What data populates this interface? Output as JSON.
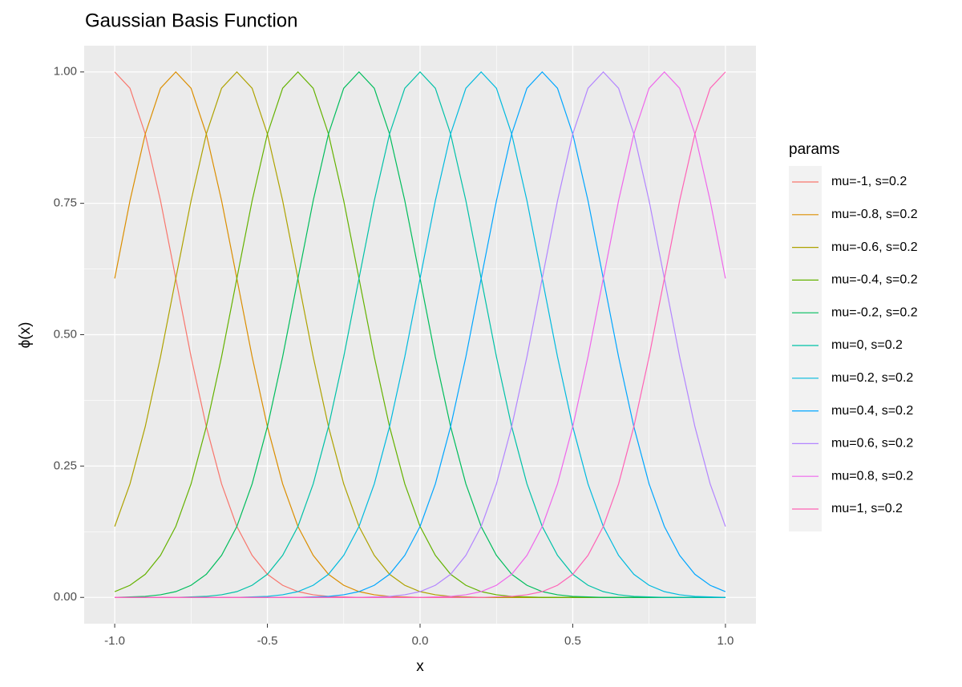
{
  "chart_data": {
    "type": "line",
    "title": "Gaussian Basis Function",
    "x_label": "x",
    "y_label": "ϕ(x)",
    "legend_title": "params",
    "legend_position": "right",
    "grid": true,
    "xlim": [
      -1.1,
      1.1
    ],
    "ylim": [
      -0.05,
      1.05
    ],
    "xticks": [
      {
        "value": -1,
        "label": "-1.0"
      },
      {
        "value": -0.5,
        "label": "-0.5"
      },
      {
        "value": 0,
        "label": "0.0"
      },
      {
        "value": 0.5,
        "label": "0.5"
      },
      {
        "value": 1,
        "label": "1.0"
      }
    ],
    "yticks": [
      {
        "value": 0,
        "label": "0.00"
      },
      {
        "value": 0.25,
        "label": "0.25"
      },
      {
        "value": 0.5,
        "label": "0.50"
      },
      {
        "value": 0.75,
        "label": "0.75"
      },
      {
        "value": 1,
        "label": "1.00"
      }
    ],
    "x": [
      -1,
      -0.95,
      -0.9,
      -0.85,
      -0.8,
      -0.75,
      -0.7,
      -0.65,
      -0.6,
      -0.55,
      -0.5,
      -0.45,
      -0.4,
      -0.35,
      -0.3,
      -0.25,
      -0.2,
      -0.15,
      -0.1,
      -0.05,
      0,
      0.05,
      0.1,
      0.15,
      0.2,
      0.25,
      0.3,
      0.35,
      0.4,
      0.45,
      0.5,
      0.55,
      0.6,
      0.65,
      0.7,
      0.75,
      0.8,
      0.85,
      0.9,
      0.95,
      1
    ],
    "series": [
      {
        "name": "mu=-1, s=0.2",
        "color": "#F8766D",
        "values": [
          1,
          0.969,
          0.882,
          0.755,
          0.607,
          0.458,
          0.325,
          0.216,
          0.135,
          0.08,
          0.044,
          0.023,
          0.011,
          0.005,
          0.002,
          0.001,
          0,
          0,
          0,
          0,
          0,
          0,
          0,
          0,
          0,
          0,
          0,
          0,
          0,
          0,
          0,
          0,
          0,
          0,
          0,
          0,
          0,
          0,
          0,
          0,
          0
        ]
      },
      {
        "name": "mu=-0.8, s=0.2",
        "color": "#DB8E00",
        "values": [
          0.607,
          0.755,
          0.882,
          0.969,
          1,
          0.969,
          0.882,
          0.755,
          0.607,
          0.458,
          0.325,
          0.216,
          0.135,
          0.08,
          0.044,
          0.023,
          0.011,
          0.005,
          0.002,
          0.001,
          0,
          0,
          0,
          0,
          0,
          0,
          0,
          0,
          0,
          0,
          0,
          0,
          0,
          0,
          0,
          0,
          0,
          0,
          0,
          0,
          0
        ]
      },
      {
        "name": "mu=-0.6, s=0.2",
        "color": "#AEA200",
        "values": [
          0.135,
          0.216,
          0.325,
          0.458,
          0.607,
          0.755,
          0.882,
          0.969,
          1,
          0.969,
          0.882,
          0.755,
          0.607,
          0.458,
          0.325,
          0.216,
          0.135,
          0.08,
          0.044,
          0.023,
          0.011,
          0.005,
          0.002,
          0.001,
          0,
          0,
          0,
          0,
          0,
          0,
          0,
          0,
          0,
          0,
          0,
          0,
          0,
          0,
          0,
          0,
          0
        ]
      },
      {
        "name": "mu=-0.4, s=0.2",
        "color": "#64B200",
        "values": [
          0.011,
          0.023,
          0.044,
          0.08,
          0.135,
          0.216,
          0.325,
          0.458,
          0.607,
          0.755,
          0.882,
          0.969,
          1,
          0.969,
          0.882,
          0.755,
          0.607,
          0.458,
          0.325,
          0.216,
          0.135,
          0.08,
          0.044,
          0.023,
          0.011,
          0.005,
          0.002,
          0.001,
          0,
          0,
          0,
          0,
          0,
          0,
          0,
          0,
          0,
          0,
          0,
          0,
          0
        ]
      },
      {
        "name": "mu=-0.2, s=0.2",
        "color": "#00BD5C",
        "values": [
          0,
          0.001,
          0.002,
          0.005,
          0.011,
          0.023,
          0.044,
          0.08,
          0.135,
          0.216,
          0.325,
          0.458,
          0.607,
          0.755,
          0.882,
          0.969,
          1,
          0.969,
          0.882,
          0.755,
          0.607,
          0.458,
          0.325,
          0.216,
          0.135,
          0.08,
          0.044,
          0.023,
          0.011,
          0.005,
          0.002,
          0.001,
          0,
          0,
          0,
          0,
          0,
          0,
          0,
          0,
          0
        ]
      },
      {
        "name": "mu=0, s=0.2",
        "color": "#00C1A7",
        "values": [
          0,
          0,
          0,
          0,
          0,
          0.001,
          0.002,
          0.005,
          0.011,
          0.023,
          0.044,
          0.08,
          0.135,
          0.216,
          0.325,
          0.458,
          0.607,
          0.755,
          0.882,
          0.969,
          1,
          0.969,
          0.882,
          0.755,
          0.607,
          0.458,
          0.325,
          0.216,
          0.135,
          0.08,
          0.044,
          0.023,
          0.011,
          0.005,
          0.002,
          0.001,
          0,
          0,
          0,
          0,
          0
        ]
      },
      {
        "name": "mu=0.2, s=0.2",
        "color": "#00BADE",
        "values": [
          0,
          0,
          0,
          0,
          0,
          0,
          0,
          0,
          0,
          0.001,
          0.002,
          0.005,
          0.011,
          0.023,
          0.044,
          0.08,
          0.135,
          0.216,
          0.325,
          0.458,
          0.607,
          0.755,
          0.882,
          0.969,
          1,
          0.969,
          0.882,
          0.755,
          0.607,
          0.458,
          0.325,
          0.216,
          0.135,
          0.08,
          0.044,
          0.023,
          0.011,
          0.005,
          0.002,
          0.001,
          0
        ]
      },
      {
        "name": "mu=0.4, s=0.2",
        "color": "#00A6FF",
        "values": [
          0,
          0,
          0,
          0,
          0,
          0,
          0,
          0,
          0,
          0,
          0,
          0,
          0,
          0.001,
          0.002,
          0.005,
          0.011,
          0.023,
          0.044,
          0.08,
          0.135,
          0.216,
          0.325,
          0.458,
          0.607,
          0.755,
          0.882,
          0.969,
          1,
          0.969,
          0.882,
          0.755,
          0.607,
          0.458,
          0.325,
          0.216,
          0.135,
          0.08,
          0.044,
          0.023,
          0.011
        ]
      },
      {
        "name": "mu=0.6, s=0.2",
        "color": "#B385FF",
        "values": [
          0,
          0,
          0,
          0,
          0,
          0,
          0,
          0,
          0,
          0,
          0,
          0,
          0,
          0,
          0,
          0,
          0,
          0.001,
          0.002,
          0.005,
          0.011,
          0.023,
          0.044,
          0.08,
          0.135,
          0.216,
          0.325,
          0.458,
          0.607,
          0.755,
          0.882,
          0.969,
          1,
          0.969,
          0.882,
          0.755,
          0.607,
          0.458,
          0.325,
          0.216,
          0.135
        ]
      },
      {
        "name": "mu=0.8, s=0.2",
        "color": "#EF67EB",
        "values": [
          0,
          0,
          0,
          0,
          0,
          0,
          0,
          0,
          0,
          0,
          0,
          0,
          0,
          0,
          0,
          0,
          0,
          0,
          0,
          0,
          0,
          0.001,
          0.002,
          0.005,
          0.011,
          0.023,
          0.044,
          0.08,
          0.135,
          0.216,
          0.325,
          0.458,
          0.607,
          0.755,
          0.882,
          0.969,
          1,
          0.969,
          0.882,
          0.755,
          0.607
        ]
      },
      {
        "name": "mu=1, s=0.2",
        "color": "#FF63B6",
        "values": [
          0,
          0,
          0,
          0,
          0,
          0,
          0,
          0,
          0,
          0,
          0,
          0,
          0,
          0,
          0,
          0,
          0,
          0,
          0,
          0,
          0,
          0,
          0,
          0,
          0,
          0.001,
          0.002,
          0.005,
          0.011,
          0.023,
          0.044,
          0.08,
          0.135,
          0.216,
          0.325,
          0.458,
          0.607,
          0.755,
          0.882,
          0.969,
          1
        ]
      }
    ]
  }
}
